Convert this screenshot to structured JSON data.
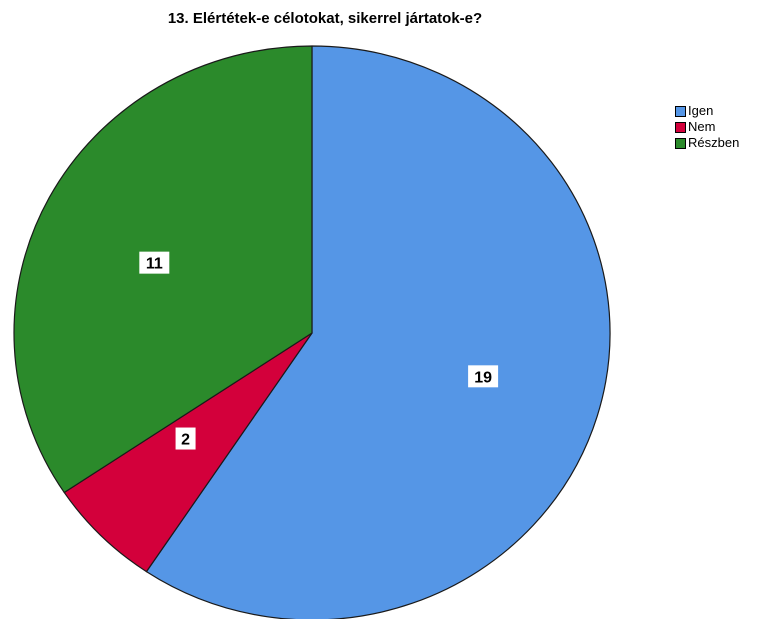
{
  "chart_data": {
    "type": "pie",
    "title": "13. Elértétek-e célotokat, sikerrel jártatok-e?",
    "categories": [
      "Igen",
      "Nem",
      "Részben"
    ],
    "values": [
      19,
      2,
      11
    ],
    "colors": [
      "#5596e6",
      "#d3003b",
      "#2b8a2b"
    ],
    "data_labels": [
      "19",
      "2",
      "11"
    ],
    "start_angle_deg": 0,
    "direction": "clockwise",
    "legend_position": "top-right"
  }
}
